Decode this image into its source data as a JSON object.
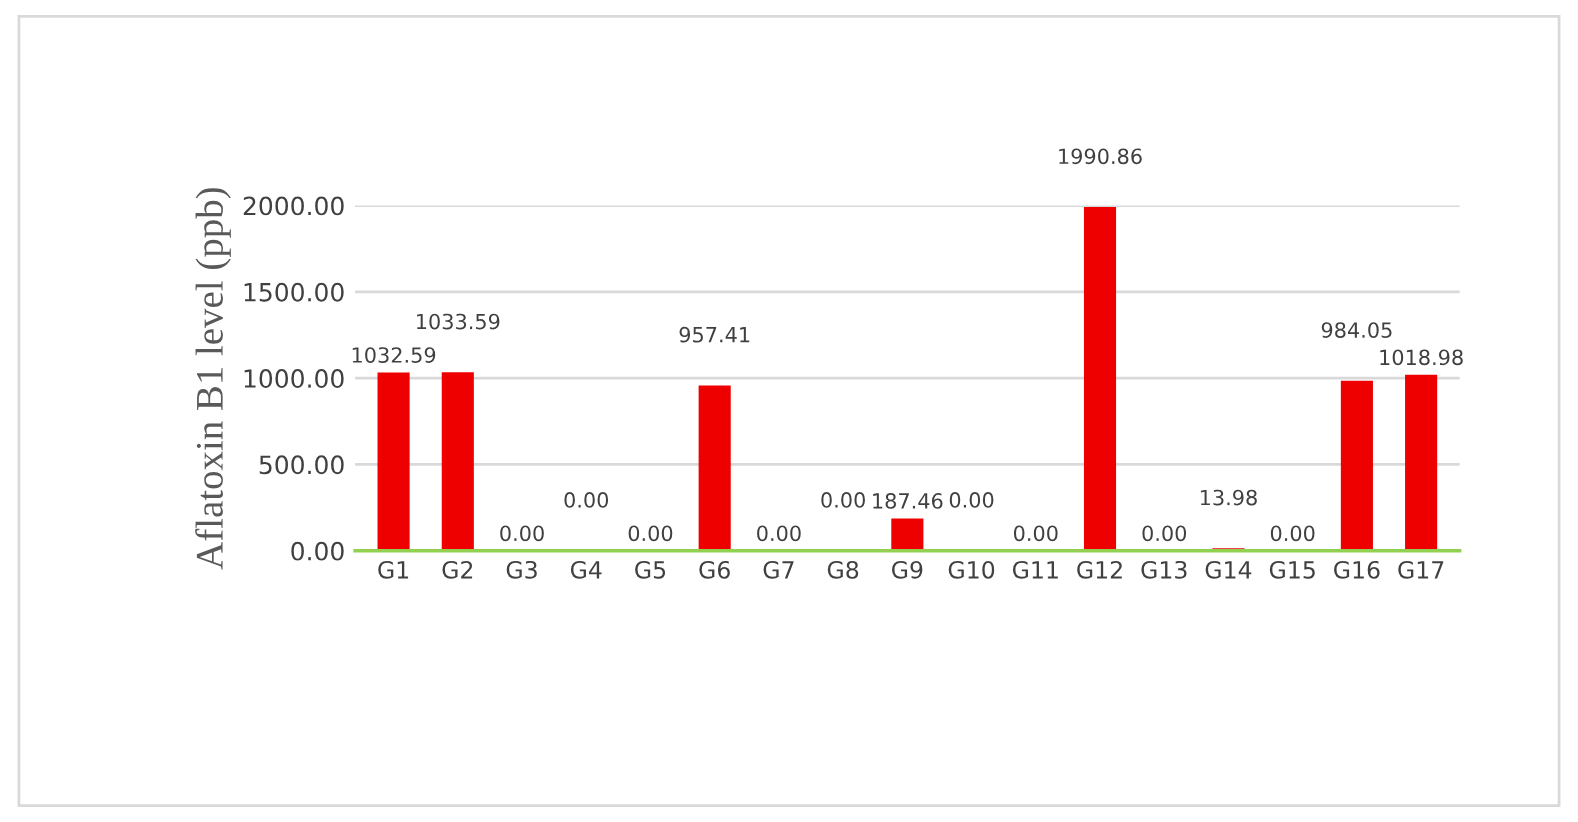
{
  "chart_data": {
    "type": "bar",
    "ylabel": "Aflatoxin B1 level (ppb)",
    "categories": [
      "G1",
      "G2",
      "G3",
      "G4",
      "G5",
      "G6",
      "G7",
      "G8",
      "G9",
      "G10",
      "G11",
      "G12",
      "G13",
      "G14",
      "G15",
      "G16",
      "G17"
    ],
    "values": [
      1032.59,
      1033.59,
      0,
      0,
      0,
      957.41,
      0,
      0,
      187.46,
      0,
      0,
      1990.86,
      0,
      13.98,
      0,
      984.05,
      1018.98
    ],
    "value_labels": [
      "1032.59",
      "1033.59",
      "0.00",
      "0.00",
      "0.00",
      "957.41",
      "0.00",
      "0.00",
      "187.46",
      "0.00",
      "0.00",
      "1990.86",
      "0.00",
      "13.98",
      "0.00",
      "984.05",
      "1018.98"
    ],
    "color": "#ee0000",
    "ylim": [
      0,
      2000
    ],
    "yticks": [
      {
        "value": 0,
        "label": "0.00"
      },
      {
        "value": 500,
        "label": "500.00"
      },
      {
        "value": 1000,
        "label": "1000.00"
      },
      {
        "value": 1500,
        "label": "1500.00"
      },
      {
        "value": 2000,
        "label": "2000.00"
      }
    ],
    "grid": "y"
  }
}
